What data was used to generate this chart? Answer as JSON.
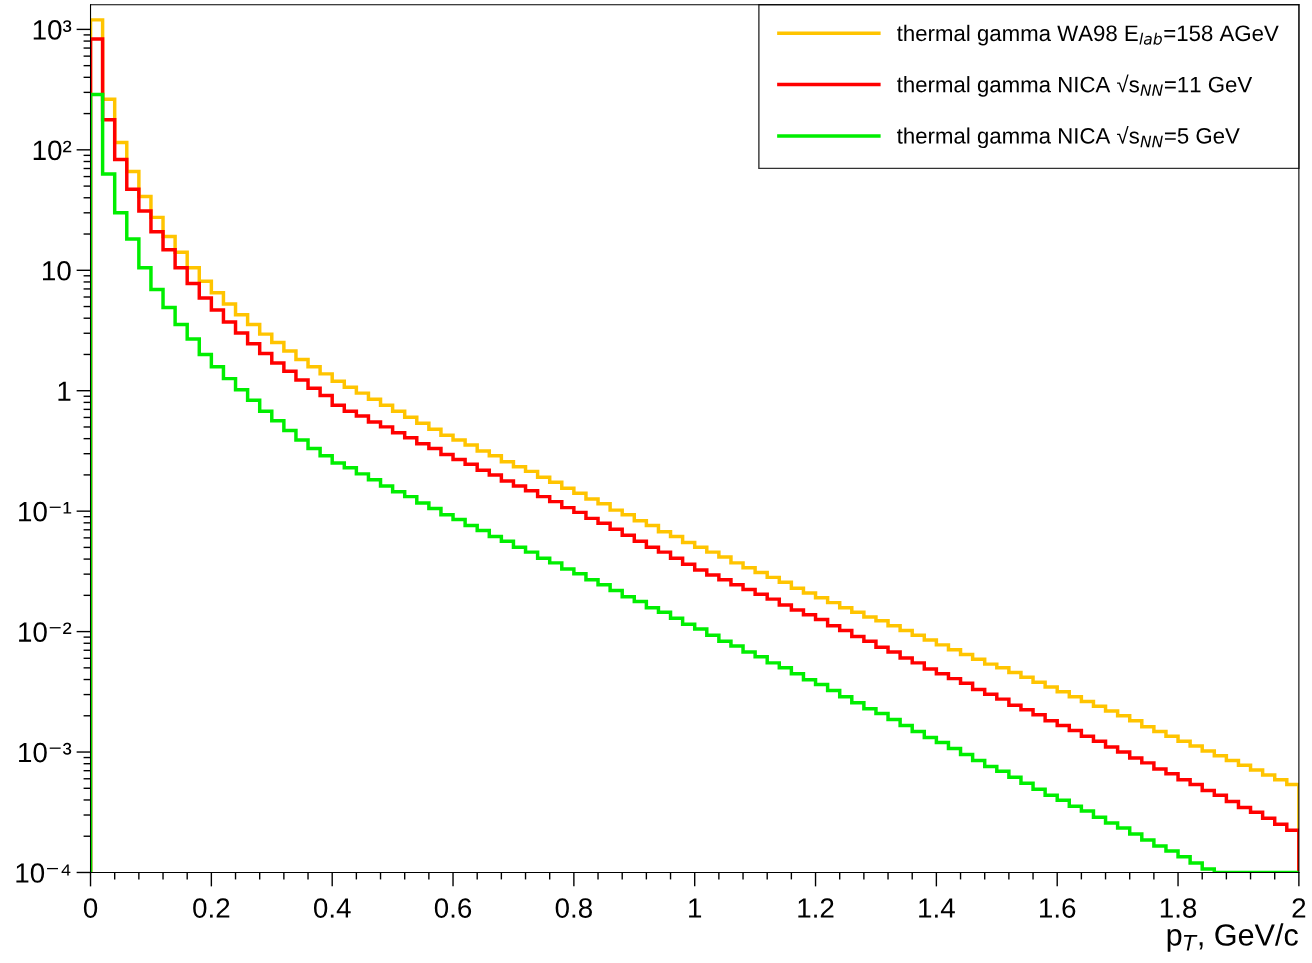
{
  "chart_data": {
    "type": "histogram",
    "xlabel": "p$_{T}$, GeV/c",
    "log": "y",
    "grid": false,
    "legend": "top right",
    "xlim": [
      0,
      2
    ],
    "ylim": [
      0.0001,
      1600
    ],
    "xticks": [
      0,
      0.2,
      0.4,
      0.6,
      0.8,
      1,
      1.2,
      1.4,
      1.6,
      1.8,
      2
    ],
    "yticks": [
      {
        "value": 0.0001,
        "label": "10⁻⁴"
      },
      {
        "value": 0.001,
        "label": "10⁻³"
      },
      {
        "value": 0.01,
        "label": "10⁻²"
      },
      {
        "value": 0.1,
        "label": "10⁻¹"
      },
      1,
      10,
      {
        "value": 100,
        "label": "10²"
      },
      {
        "value": 1000,
        "label": "10³"
      }
    ],
    "bins": [
      0,
      0.02,
      0.04,
      0.06,
      0.08,
      0.1,
      0.12,
      0.14,
      0.16,
      0.18,
      0.2,
      0.22,
      0.24,
      0.26,
      0.28,
      0.3,
      0.32,
      0.34,
      0.36,
      0.38,
      0.4,
      0.42,
      0.44,
      0.46,
      0.48,
      0.5,
      0.52,
      0.54,
      0.56,
      0.58,
      0.6,
      0.62,
      0.64,
      0.66,
      0.68,
      0.7,
      0.72,
      0.74,
      0.76,
      0.78,
      0.8,
      0.82,
      0.84,
      0.86,
      0.88,
      0.9,
      0.92,
      0.94,
      0.96,
      0.98,
      1,
      1.02,
      1.04,
      1.06,
      1.08,
      1.1,
      1.12,
      1.14,
      1.16,
      1.18,
      1.2,
      1.22,
      1.24,
      1.26,
      1.28,
      1.3,
      1.32,
      1.34,
      1.36,
      1.38,
      1.4,
      1.42,
      1.44,
      1.46,
      1.48,
      1.5,
      1.52,
      1.54,
      1.56,
      1.58,
      1.6,
      1.62,
      1.64,
      1.66,
      1.68,
      1.7,
      1.72,
      1.74,
      1.76,
      1.78,
      1.8,
      1.82,
      1.84,
      1.86,
      1.88,
      1.9,
      1.92,
      1.94,
      1.96,
      1.98,
      2
    ],
    "series": [
      {
        "name": "thermal gamma WA98 E$_{lab}$=158 AGeV",
        "color": "#ffc400",
        "values": [
          1200,
          263,
          115,
          66,
          41,
          27.5,
          19.1,
          14.1,
          10.5,
          8.1,
          6.5,
          5.25,
          4.27,
          3.55,
          2.95,
          2.51,
          2.14,
          1.82,
          1.58,
          1.38,
          1.2,
          1.07,
          0.955,
          0.851,
          0.759,
          0.676,
          0.603,
          0.537,
          0.479,
          0.427,
          0.389,
          0.355,
          0.316,
          0.288,
          0.257,
          0.234,
          0.214,
          0.191,
          0.174,
          0.155,
          0.141,
          0.126,
          0.115,
          0.102,
          0.0933,
          0.0832,
          0.0759,
          0.0676,
          0.0617,
          0.055,
          0.0501,
          0.0457,
          0.0417,
          0.0372,
          0.0339,
          0.0309,
          0.0282,
          0.0257,
          0.0229,
          0.0209,
          0.0191,
          0.0174,
          0.0158,
          0.0145,
          0.0132,
          0.0123,
          0.0112,
          0.0102,
          0.00933,
          0.00851,
          0.00776,
          0.00708,
          0.00646,
          0.00589,
          0.00537,
          0.00501,
          0.00457,
          0.00417,
          0.0038,
          0.00347,
          0.00316,
          0.00288,
          0.00263,
          0.0024,
          0.00219,
          0.002,
          0.00182,
          0.00162,
          0.00148,
          0.00135,
          0.00123,
          0.00112,
          0.00102,
          0.000933,
          0.000851,
          0.000776,
          0.000708,
          0.000646,
          0.000589,
          0.000537
        ]
      },
      {
        "name": "thermal gamma NICA √s$_{NN}$=11 GeV",
        "color": "#ff0000",
        "values": [
          832,
          178,
          83,
          47,
          31,
          20.9,
          14.8,
          10.5,
          7.76,
          5.89,
          4.68,
          3.72,
          3.02,
          2.45,
          2.04,
          1.7,
          1.45,
          1.23,
          1.05,
          0.912,
          0.759,
          0.676,
          0.617,
          0.55,
          0.501,
          0.447,
          0.407,
          0.363,
          0.331,
          0.295,
          0.269,
          0.245,
          0.219,
          0.2,
          0.178,
          0.162,
          0.148,
          0.132,
          0.12,
          0.107,
          0.0977,
          0.0871,
          0.0794,
          0.0708,
          0.0631,
          0.0562,
          0.0501,
          0.0457,
          0.0407,
          0.0363,
          0.0324,
          0.0295,
          0.0269,
          0.0245,
          0.0224,
          0.0204,
          0.0186,
          0.0166,
          0.0151,
          0.0138,
          0.0126,
          0.0112,
          0.0102,
          0.00912,
          0.00832,
          0.00741,
          0.00676,
          0.00603,
          0.0055,
          0.0049,
          0.00447,
          0.00407,
          0.00372,
          0.00331,
          0.00302,
          0.00275,
          0.00245,
          0.00224,
          0.00204,
          0.00182,
          0.00166,
          0.00151,
          0.00135,
          0.00123,
          0.0011,
          0.001,
          0.000891,
          0.000813,
          0.000724,
          0.000661,
          0.000589,
          0.000537,
          0.000479,
          0.000437,
          0.000389,
          0.000347,
          0.000316,
          0.000282,
          0.000251,
          0.000224
        ]
      },
      {
        "name": "thermal gamma NICA √s$_{NN}$=5 GeV",
        "color": "#00ee00",
        "values": [
          288,
          63,
          30,
          18.2,
          10.5,
          6.92,
          4.9,
          3.55,
          2.69,
          2.0,
          1.58,
          1.26,
          1.02,
          0.832,
          0.676,
          0.562,
          0.468,
          0.389,
          0.331,
          0.288,
          0.251,
          0.229,
          0.204,
          0.182,
          0.162,
          0.145,
          0.132,
          0.117,
          0.105,
          0.0933,
          0.0851,
          0.0759,
          0.0692,
          0.0617,
          0.0562,
          0.0501,
          0.0457,
          0.0407,
          0.0372,
          0.0331,
          0.0302,
          0.0269,
          0.0245,
          0.0219,
          0.0195,
          0.0178,
          0.0158,
          0.0145,
          0.0129,
          0.0115,
          0.0105,
          0.00933,
          0.00832,
          0.00759,
          0.00676,
          0.00617,
          0.0055,
          0.00501,
          0.00447,
          0.00398,
          0.00363,
          0.00324,
          0.00288,
          0.00257,
          0.00229,
          0.00209,
          0.00186,
          0.00166,
          0.00148,
          0.00132,
          0.0012,
          0.00107,
          0.000955,
          0.000851,
          0.000759,
          0.000692,
          0.000617,
          0.00055,
          0.00049,
          0.000437,
          0.000398,
          0.000355,
          0.000324,
          0.000288,
          0.000257,
          0.000234,
          0.000209,
          0.000186,
          0.000166,
          0.000151,
          0.000135,
          0.00012,
          0.000107,
          0.0001,
          0.0001,
          0.0001,
          0.0001,
          0.0001,
          0.0001,
          0.0001
        ]
      }
    ]
  }
}
